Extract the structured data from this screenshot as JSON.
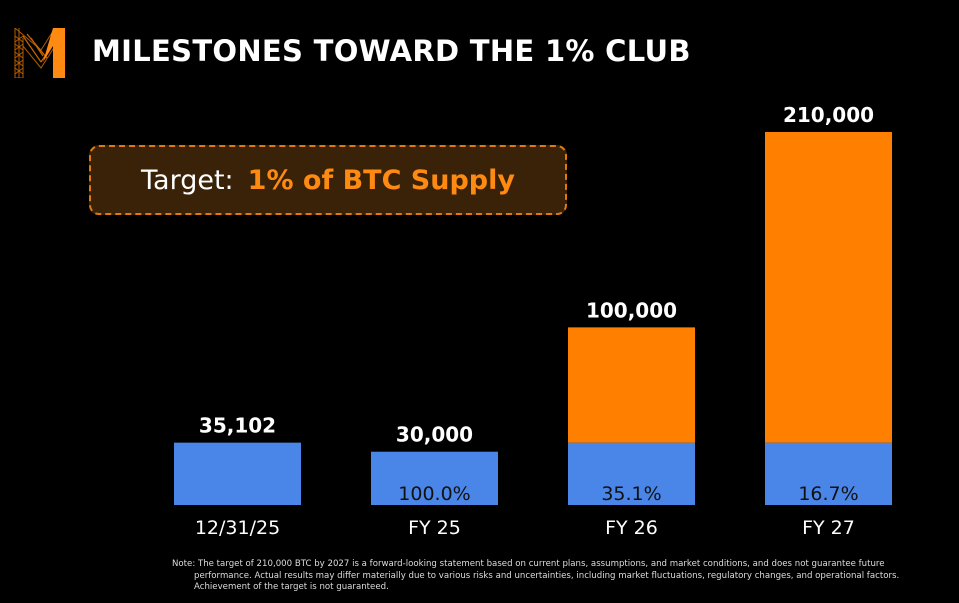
{
  "title": "MILESTONES TOWARD THE 1% CLUB",
  "callout": {
    "label": "Target:",
    "value": "1% of BTC Supply"
  },
  "colors": {
    "blue": "#4a86e8",
    "orange": "#ff8000",
    "accent": "#ff8a12",
    "callout_bg": "#3a2208"
  },
  "chart_data": {
    "type": "bar",
    "stacked": true,
    "categories": [
      "12/31/25",
      "FY 25",
      "FY 26",
      "FY 27"
    ],
    "totals": [
      35102,
      30000,
      100000,
      210000
    ],
    "total_labels": [
      "35,102",
      "30,000",
      "100,000",
      "210,000"
    ],
    "series": [
      {
        "values": [
          35102,
          30000,
          35102,
          35102
        ],
        "color": "#4a86e8"
      },
      {
        "values": [
          0,
          0,
          64898,
          174898
        ],
        "color": "#ff8000"
      }
    ],
    "percent_labels": [
      "",
      "100.0%",
      "35.1%",
      "16.7%"
    ],
    "ylim": [
      0,
      210000
    ],
    "grid": false
  },
  "note": "Note: The target of 210,000 BTC by 2027 is a forward-looking statement based on current plans, assumptions, and market conditions, and does not guarantee future performance. Actual results may differ materially due to various risks and uncertainties, including market fluctuations, regulatory changes, and operational factors. Achievement of the target is not guaranteed."
}
